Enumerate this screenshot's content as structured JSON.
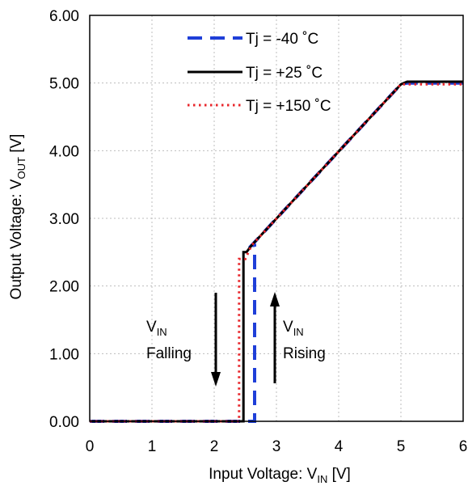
{
  "chart_data": {
    "type": "line",
    "xlabel": {
      "main": "Input Voltage: V",
      "sub": "IN",
      "unit": " [V]"
    },
    "ylabel": {
      "main": "Output Voltage: V",
      "sub": "OUT",
      "unit": " [V]"
    },
    "xlim": [
      0,
      6
    ],
    "ylim": [
      0,
      6
    ],
    "x_ticks": [
      "0",
      "1",
      "2",
      "3",
      "4",
      "5",
      "6"
    ],
    "y_ticks": [
      "0.00",
      "1.00",
      "2.00",
      "3.00",
      "4.00",
      "5.00",
      "6.00"
    ],
    "grid": "dotted",
    "legend_position": "top-left",
    "series": [
      {
        "name": "Tj = -40 ˚C",
        "color": "#1F3FD8",
        "style": "dashed",
        "x": [
          0,
          2.65,
          2.65,
          2.6,
          5.0,
          5.1,
          6.0
        ],
        "y": [
          0,
          0,
          2.6,
          2.6,
          4.98,
          5.0,
          5.0
        ]
      },
      {
        "name": "Tj = +25 ˚C",
        "color": "#000000",
        "style": "solid",
        "x": [
          0,
          2.47,
          2.47,
          2.52,
          2.6,
          5.0,
          5.1,
          6.0
        ],
        "y": [
          0,
          0,
          2.5,
          2.5,
          2.6,
          4.98,
          5.02,
          5.02
        ]
      },
      {
        "name": "Tj = +150 ˚C",
        "color": "#E8262B",
        "style": "dotted",
        "x": [
          0,
          2.4,
          2.4,
          2.5,
          2.6,
          5.0,
          5.1,
          6.0
        ],
        "y": [
          0,
          0,
          2.4,
          2.4,
          2.6,
          4.98,
          4.98,
          4.98
        ]
      }
    ],
    "annotations": [
      {
        "id": "falling",
        "line1_main": "V",
        "line1_sub": "IN",
        "line2": "Falling",
        "direction": "down"
      },
      {
        "id": "rising",
        "line1_main": "V",
        "line1_sub": "IN",
        "line2": "Rising",
        "direction": "up"
      }
    ]
  }
}
